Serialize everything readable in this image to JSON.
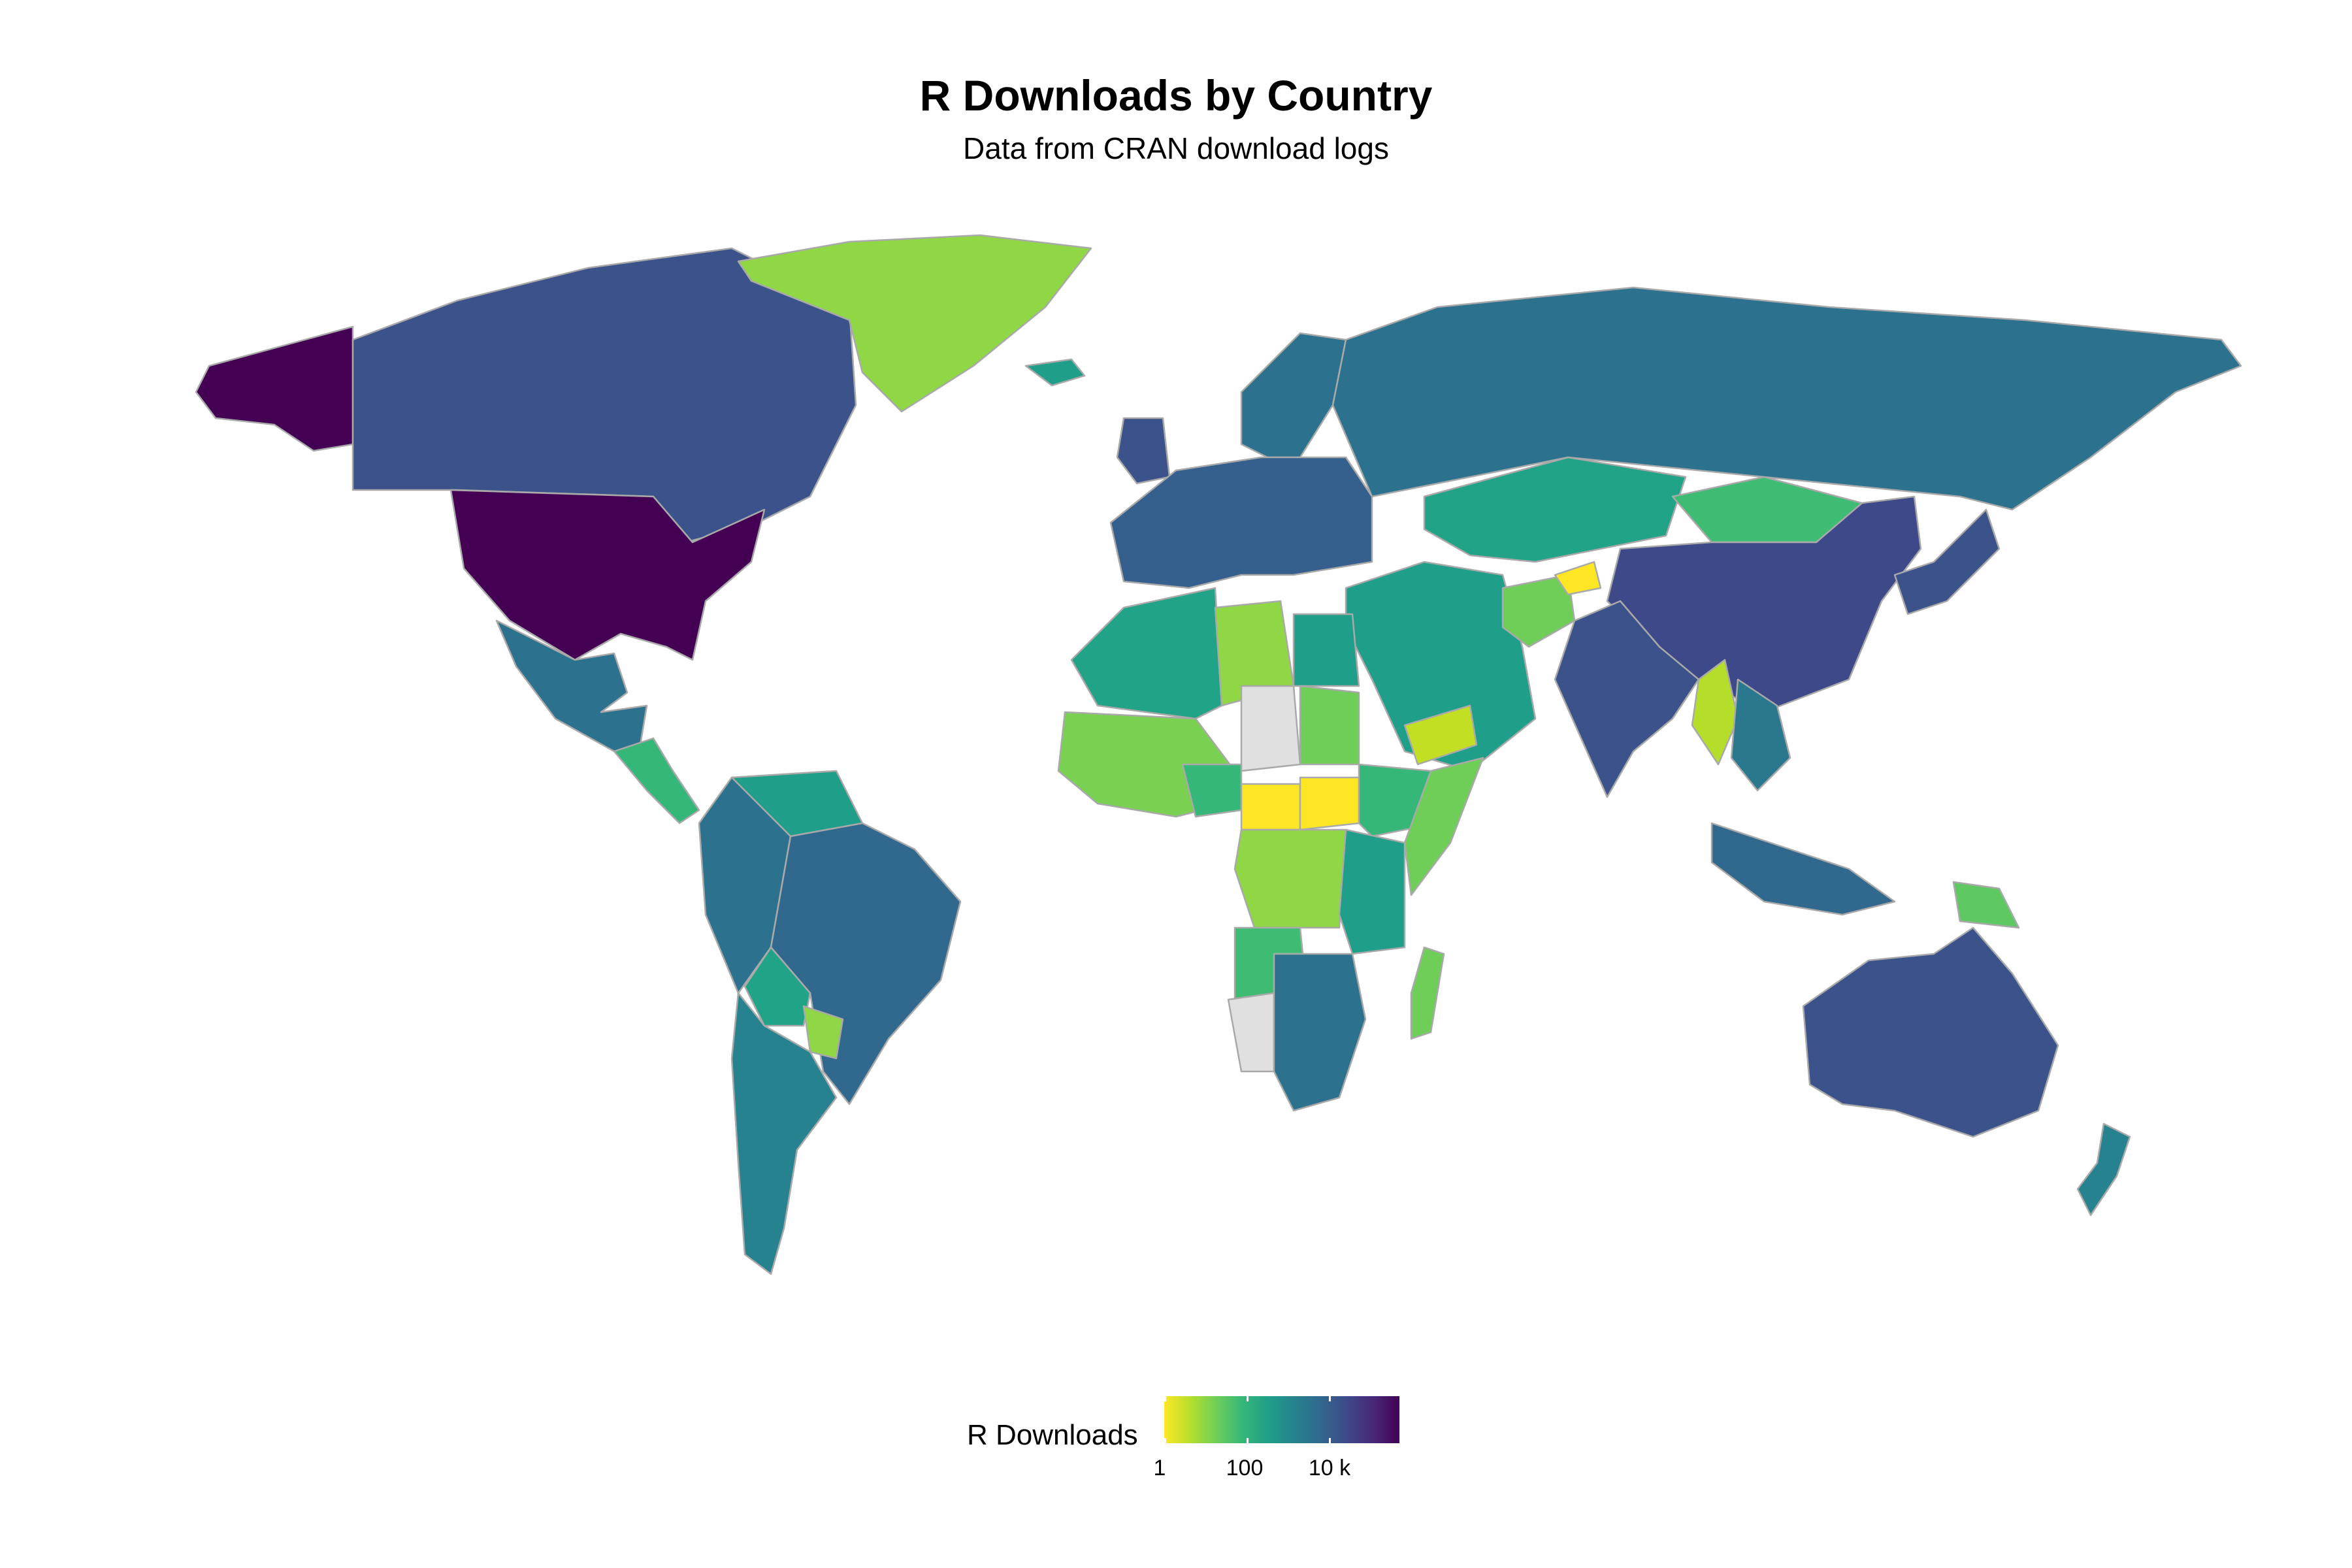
{
  "header": {
    "title": "R Downloads by Country",
    "subtitle": "Data from CRAN download logs"
  },
  "legend": {
    "title": "R Downloads",
    "ticks": [
      "1",
      "100",
      "10 k"
    ],
    "scale": "log",
    "palette": "viridis (reversed)",
    "colors": [
      "#fde725",
      "#b5de2b",
      "#6ece58",
      "#35b779",
      "#1f9e89",
      "#26828e",
      "#31688e",
      "#3e4989",
      "#482878",
      "#440154"
    ],
    "no_data_color": "#e0e0e0"
  },
  "map": {
    "projection": "equirectangular world",
    "border_color": "#a9a9a9",
    "regions": [
      {
        "name": "United States",
        "color": "#440154"
      },
      {
        "name": "Alaska",
        "color": "#440154"
      },
      {
        "name": "Canada",
        "color": "#3b528b"
      },
      {
        "name": "Greenland",
        "color": "#8fd744"
      },
      {
        "name": "Mexico",
        "color": "#2c728e"
      },
      {
        "name": "Central America",
        "color": "#35b779"
      },
      {
        "name": "Venezuela / Colombia north",
        "color": "#1f9e89"
      },
      {
        "name": "Colombia / Peru",
        "color": "#2c728e"
      },
      {
        "name": "Brazil",
        "color": "#31688e"
      },
      {
        "name": "Bolivia",
        "color": "#20a386"
      },
      {
        "name": "Paraguay",
        "color": "#8fd744"
      },
      {
        "name": "Argentina / Chile",
        "color": "#26828e"
      },
      {
        "name": "Europe",
        "color": "#355f8d"
      },
      {
        "name": "United Kingdom",
        "color": "#3b528b"
      },
      {
        "name": "Russia",
        "color": "#2c728e"
      },
      {
        "name": "Kazakhstan",
        "color": "#20a386"
      },
      {
        "name": "Mongolia",
        "color": "#3fbc73"
      },
      {
        "name": "China",
        "color": "#3e4989"
      },
      {
        "name": "India",
        "color": "#3b528b"
      },
      {
        "name": "Afghanistan",
        "color": "#6ece58"
      },
      {
        "name": "Pakistan",
        "color": "#fde725"
      },
      {
        "name": "Middle East",
        "color": "#1f9e89"
      },
      {
        "name": "Yemen",
        "color": "#c2df23"
      },
      {
        "name": "Myanmar",
        "color": "#b5de2b"
      },
      {
        "name": "Southeast Asia",
        "color": "#2a788e"
      },
      {
        "name": "Japan / Korea",
        "color": "#3b528b"
      },
      {
        "name": "Indonesia",
        "color": "#31688e"
      },
      {
        "name": "Papua New Guinea",
        "color": "#5ec962"
      },
      {
        "name": "Australia",
        "color": "#3b528b"
      },
      {
        "name": "New Zealand",
        "color": "#26828e"
      },
      {
        "name": "North Africa",
        "color": "#20a386"
      },
      {
        "name": "Libya",
        "color": "#8fd744"
      },
      {
        "name": "Chad (no data)",
        "color": "#e0e0e0"
      },
      {
        "name": "Sudan",
        "color": "#6ece58"
      },
      {
        "name": "Egypt",
        "color": "#1f9e89"
      },
      {
        "name": "West Africa",
        "color": "#7ad151"
      },
      {
        "name": "Nigeria",
        "color": "#35b779"
      },
      {
        "name": "Central African Republic",
        "color": "#fde725"
      },
      {
        "name": "South Sudan",
        "color": "#fde725"
      },
      {
        "name": "Ethiopia",
        "color": "#35b779"
      },
      {
        "name": "Somalia",
        "color": "#6ece58"
      },
      {
        "name": "DR Congo",
        "color": "#8fd744"
      },
      {
        "name": "Kenya / Tanzania",
        "color": "#1f9e89"
      },
      {
        "name": "Angola",
        "color": "#3fbc73"
      },
      {
        "name": "Namibia (no data)",
        "color": "#e0e0e0"
      },
      {
        "name": "Southern Africa",
        "color": "#2c728e"
      },
      {
        "name": "Madagascar",
        "color": "#6ece58"
      },
      {
        "name": "Iceland",
        "color": "#1f9e89"
      },
      {
        "name": "Scandinavia",
        "color": "#2c728e"
      }
    ]
  }
}
